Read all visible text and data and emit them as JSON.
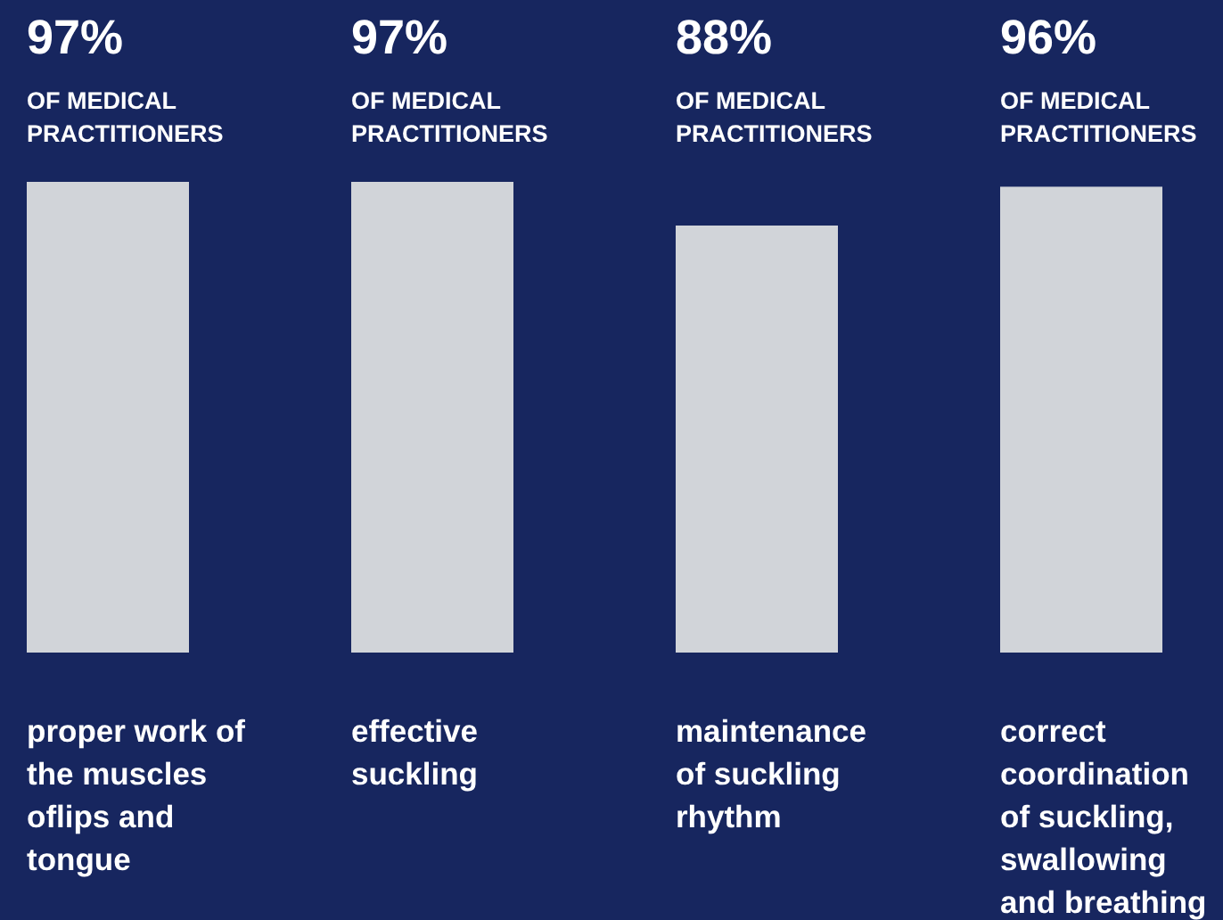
{
  "chart_data": {
    "type": "bar",
    "categories": [
      "proper work of the muscles oflips and tongue",
      "effective suckling",
      "maintenance of suckling rhythm",
      "correct coordination of suckling, swallowing and breathing"
    ],
    "values": [
      97,
      97,
      88,
      96
    ],
    "color": "#d1d4d9",
    "value_labels": [
      "97%",
      "97%",
      "88%",
      "96%"
    ],
    "annotations": [
      "OF MEDICAL PRACTITIONERS",
      "OF MEDICAL PRACTITIONERS",
      "OF MEDICAL PRACTITIONERS",
      "OF MEDICAL PRACTITIONERS"
    ]
  }
}
